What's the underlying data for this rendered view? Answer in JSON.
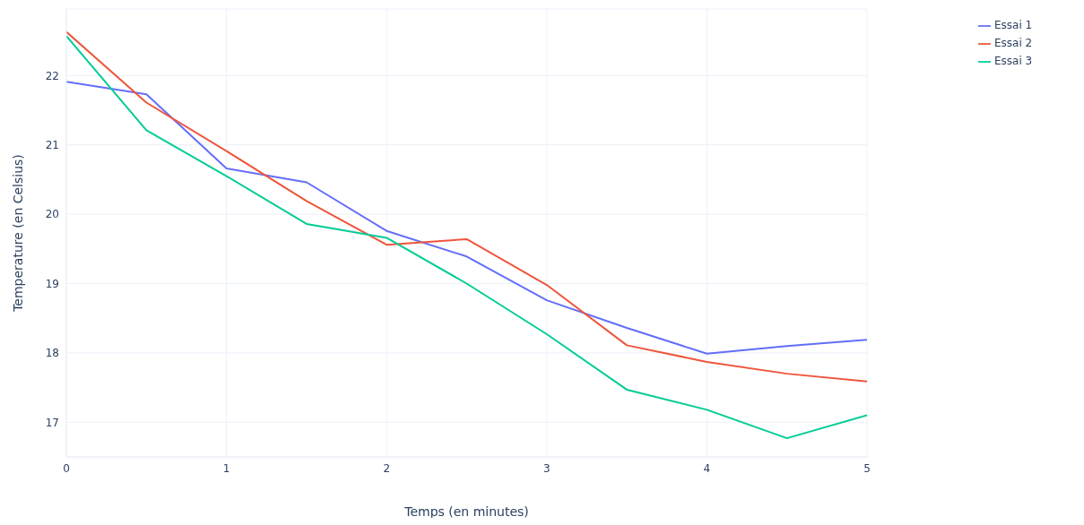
{
  "chart_data": {
    "type": "line",
    "xlabel": "Temps (en minutes)",
    "ylabel": "Temperature (en Celsius)",
    "x": [
      0,
      0.5,
      1,
      1.5,
      2,
      2.5,
      3,
      3.5,
      4,
      4.5,
      5
    ],
    "series": [
      {
        "name": "Essai 1",
        "color": "#636efa",
        "values": [
          21.91,
          21.73,
          20.66,
          20.46,
          19.76,
          19.39,
          18.76,
          18.36,
          17.99,
          18.1,
          18.19
        ]
      },
      {
        "name": "Essai 2",
        "color": "#ef553b",
        "values": [
          22.63,
          21.61,
          20.91,
          20.19,
          19.56,
          19.64,
          18.98,
          18.11,
          17.87,
          17.7,
          17.59
        ]
      },
      {
        "name": "Essai 3",
        "color": "#00cc96",
        "values": [
          22.57,
          21.21,
          20.55,
          19.86,
          19.66,
          19.0,
          18.27,
          17.47,
          17.18,
          16.77,
          17.1
        ]
      }
    ],
    "xlim": [
      0,
      5
    ],
    "xticks": [
      0,
      1,
      2,
      3,
      4,
      5
    ],
    "ylim": [
      16.5,
      22.96
    ],
    "yticks": [
      17,
      18,
      19,
      20,
      21,
      22
    ],
    "grid": true,
    "legend": "top right",
    "marker": "none",
    "line_style": "solid"
  }
}
